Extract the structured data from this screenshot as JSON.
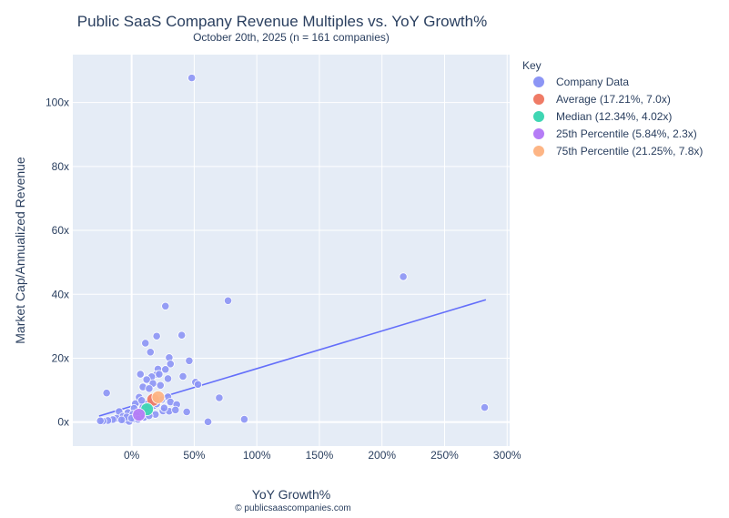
{
  "chart_data": {
    "type": "scatter",
    "title": "Public SaaS Company Revenue Multiples vs. YoY Growth%",
    "subtitle": "October 20th, 2025 (n = 161 companies)",
    "xlabel": "YoY Growth%",
    "ylabel": "Market Cap/Annualized Revenue",
    "xlim": [
      -47,
      302
    ],
    "ylim": [
      -7.5,
      115
    ],
    "xticks": [
      0,
      50,
      100,
      150,
      200,
      250,
      300
    ],
    "xtick_labels": [
      "0%",
      "50%",
      "100%",
      "150%",
      "200%",
      "250%",
      "300%"
    ],
    "yticks": [
      0,
      20,
      40,
      60,
      80,
      100
    ],
    "ytick_labels": [
      "0x",
      "20x",
      "40x",
      "60x",
      "80x",
      "100x"
    ],
    "grid": true,
    "legend_title": "Key",
    "legend_position": "right",
    "footer": "© publicsaascompanies.com",
    "series": [
      {
        "name": "Company Data",
        "color": "#8c95f5",
        "points": [
          [
            48,
            107.7
          ],
          [
            217,
            45.5
          ],
          [
            77,
            38
          ],
          [
            27,
            36.3
          ],
          [
            40,
            27.2
          ],
          [
            20,
            26.9
          ],
          [
            11,
            24.7
          ],
          [
            15,
            21.9
          ],
          [
            46,
            19.2
          ],
          [
            30,
            20.2
          ],
          [
            31,
            18.2
          ],
          [
            21,
            16.6
          ],
          [
            27,
            16.5
          ],
          [
            20,
            14.9
          ],
          [
            22,
            15
          ],
          [
            41,
            14.3
          ],
          [
            7,
            15
          ],
          [
            16,
            14.2
          ],
          [
            29,
            13.6
          ],
          [
            12,
            13.3
          ],
          [
            51,
            12.5
          ],
          [
            53,
            11.8
          ],
          [
            17,
            12.1
          ],
          [
            9,
            11
          ],
          [
            23,
            11.5
          ],
          [
            14,
            10.5
          ],
          [
            -20,
            9.1
          ],
          [
            70,
            7.6
          ],
          [
            29,
            7.9
          ],
          [
            6,
            7.8
          ],
          [
            24,
            7
          ],
          [
            31,
            6.3
          ],
          [
            3,
            5.8
          ],
          [
            36,
            5.5
          ],
          [
            18,
            5.2
          ],
          [
            9,
            4.7
          ],
          [
            2,
            4.3
          ],
          [
            13,
            4.6
          ],
          [
            -10,
            3.3
          ],
          [
            -3,
            3
          ],
          [
            1,
            2.5
          ],
          [
            25,
            3.5
          ],
          [
            44,
            3.2
          ],
          [
            30,
            3.4
          ],
          [
            35,
            3.8
          ],
          [
            7,
            2.6
          ],
          [
            4,
            2.1
          ],
          [
            -7,
            1.8
          ],
          [
            -12,
            1.2
          ],
          [
            -15,
            0.8
          ],
          [
            -19,
            0.5
          ],
          [
            -23,
            0.3
          ],
          [
            -25,
            0.4
          ],
          [
            -6,
            0.6
          ],
          [
            -2,
            0.2
          ],
          [
            10,
            1.5
          ],
          [
            15,
            2.8
          ],
          [
            19,
            2.4
          ],
          [
            2,
            1
          ],
          [
            5,
            0.9
          ],
          [
            61,
            0.1
          ],
          [
            90,
            0.9
          ],
          [
            282,
            4.6
          ],
          [
            -4,
            1.6
          ],
          [
            12,
            3.1
          ],
          [
            16,
            6.2
          ],
          [
            20,
            5.7
          ],
          [
            26,
            4.4
          ],
          [
            8,
            6.8
          ],
          [
            0,
            1.2
          ],
          [
            -8,
            0.7
          ],
          [
            14,
            2
          ]
        ]
      },
      {
        "name": "Average (17.21%, 7.0x)",
        "color": "#ef7b66",
        "points": [
          [
            17.21,
            7.0
          ]
        ]
      },
      {
        "name": "Median (12.34%, 4.02x)",
        "color": "#3fd6b3",
        "points": [
          [
            12.34,
            4.02
          ]
        ]
      },
      {
        "name": "25th Percentile (5.84%, 2.3x)",
        "color": "#b57cf6",
        "points": [
          [
            5.84,
            2.3
          ]
        ]
      },
      {
        "name": "75th Percentile (21.25%, 7.8x)",
        "color": "#fdb585",
        "points": [
          [
            21.25,
            7.8
          ]
        ]
      }
    ],
    "trendline": {
      "x": [
        -26,
        283
      ],
      "y": [
        1.9,
        38.3
      ],
      "color": "#636efa"
    }
  }
}
